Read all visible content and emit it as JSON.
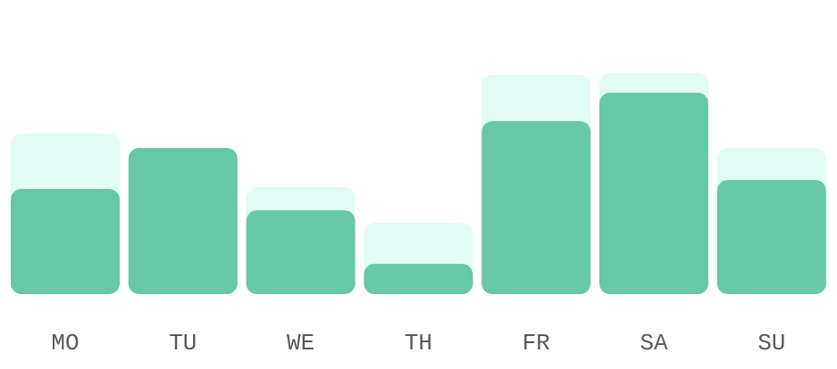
{
  "chart_data": {
    "type": "bar",
    "categories": [
      "MO",
      "TU",
      "WE",
      "TH",
      "FR",
      "SA",
      "SU"
    ],
    "series": [
      {
        "values": [
          90,
          82,
          60,
          40,
          123,
          124,
          82
        ],
        "color": "#e0fcf4"
      },
      {
        "values": [
          59,
          82,
          47,
          17,
          97,
          113,
          64
        ],
        "color": "#66c8a6"
      }
    ],
    "title": "",
    "xlabel": "",
    "ylabel": "",
    "ylim": [
      0,
      140
    ],
    "grid": false,
    "legend": "none",
    "label_color": "#5a5a5a"
  }
}
